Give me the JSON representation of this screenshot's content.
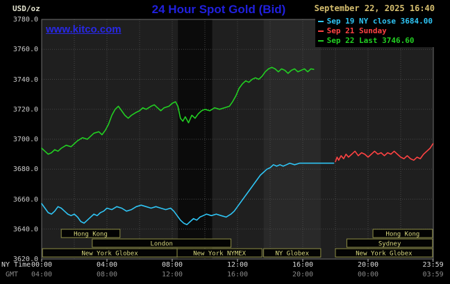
{
  "header": {
    "units_label": "USD/oz",
    "title": "24 Hour Spot Gold (Bid)",
    "datetime": "September 22, 2025 16:40",
    "watermark": "www.kitco.com"
  },
  "legend": [
    {
      "label": "Sep 19 NY close 3684.00",
      "color": "#2fc5f5"
    },
    {
      "label": "Sep 21 Sunday",
      "color": "#ff4343"
    },
    {
      "label": "Sep 22 Last 3746.60",
      "color": "#22cf22"
    }
  ],
  "axes": {
    "ny_time_label": "NY Time",
    "gmt_label": "GMT",
    "y_ticks": [
      {
        "value": 3620,
        "label": "3620.0"
      },
      {
        "value": 3640,
        "label": "3640.0"
      },
      {
        "value": 3660,
        "label": "3660.0"
      },
      {
        "value": 3680,
        "label": "3680.0"
      },
      {
        "value": 3700,
        "label": "3700.0"
      },
      {
        "value": 3720,
        "label": "3720.0"
      },
      {
        "value": 3740,
        "label": "3740.0"
      },
      {
        "value": 3760,
        "label": "3760.0"
      },
      {
        "value": 3780,
        "label": "3780.0"
      }
    ],
    "x_ticks": [
      {
        "t": 0,
        "ny": "00:00",
        "gmt": "04:00"
      },
      {
        "t": 4,
        "ny": "04:00",
        "gmt": "08:00"
      },
      {
        "t": 8,
        "ny": "08:00",
        "gmt": "12:00"
      },
      {
        "t": 12,
        "ny": "12:00",
        "gmt": "16:00"
      },
      {
        "t": 16,
        "ny": "16:00",
        "gmt": "20:00"
      },
      {
        "t": 20,
        "ny": "20:00",
        "gmt": "00:00"
      },
      {
        "t": 23.983,
        "ny": "23:59",
        "gmt": "03:59"
      }
    ],
    "x_grid": [
      2,
      4,
      6,
      8,
      10,
      12,
      14,
      16,
      18,
      20,
      22
    ]
  },
  "sessions": [
    {
      "label": "Hong Kong",
      "row": 0,
      "start": 1.2,
      "end": 4.8
    },
    {
      "label": "Hong Kong",
      "row": 0,
      "start": 20.3,
      "end": 23.95
    },
    {
      "label": "London",
      "row": 1,
      "start": 3.1,
      "end": 11.6
    },
    {
      "label": "Sydney",
      "row": 1,
      "start": 18.7,
      "end": 23.95
    },
    {
      "label": "New York Globex",
      "row": 2,
      "start": 0.05,
      "end": 8.3
    },
    {
      "label": "New York NYMEX",
      "row": 2,
      "start": 8.3,
      "end": 13.5
    },
    {
      "label": "NY Globex",
      "row": 2,
      "start": 13.6,
      "end": 17.1
    },
    {
      "label": "New York Globex",
      "row": 2,
      "start": 18.0,
      "end": 23.95
    }
  ],
  "chart_data": {
    "type": "line",
    "title": "24 Hour Spot Gold (Bid)",
    "ylabel": "USD/oz",
    "x_unit": "hours, NY time",
    "x_range": [
      0,
      24
    ],
    "y_range": [
      3620,
      3780
    ],
    "grid": true,
    "plot_bg": "#1f1f1f",
    "bands": [
      {
        "start": 8.35,
        "end": 10.45,
        "color": "#0b0b0b"
      },
      {
        "start": 13.6,
        "end": 17.1,
        "color": "#292929"
      }
    ],
    "series": [
      {
        "name": "Sep 19 NY close 3684.00",
        "color": "#2fc5f5",
        "points": [
          [
            0,
            3657
          ],
          [
            0.2,
            3654
          ],
          [
            0.4,
            3651
          ],
          [
            0.6,
            3650
          ],
          [
            0.8,
            3652
          ],
          [
            1,
            3655
          ],
          [
            1.2,
            3654
          ],
          [
            1.4,
            3652
          ],
          [
            1.6,
            3650
          ],
          [
            1.8,
            3649
          ],
          [
            2,
            3650
          ],
          [
            2.2,
            3648
          ],
          [
            2.4,
            3645
          ],
          [
            2.6,
            3644
          ],
          [
            2.8,
            3646
          ],
          [
            3,
            3648
          ],
          [
            3.2,
            3650
          ],
          [
            3.4,
            3649
          ],
          [
            3.6,
            3651
          ],
          [
            3.8,
            3652
          ],
          [
            4,
            3654
          ],
          [
            4.3,
            3653
          ],
          [
            4.6,
            3655
          ],
          [
            4.9,
            3654
          ],
          [
            5.2,
            3652
          ],
          [
            5.5,
            3653
          ],
          [
            5.8,
            3655
          ],
          [
            6.1,
            3656
          ],
          [
            6.4,
            3655
          ],
          [
            6.7,
            3654
          ],
          [
            7,
            3655
          ],
          [
            7.3,
            3654
          ],
          [
            7.6,
            3653
          ],
          [
            7.9,
            3654
          ],
          [
            8.1,
            3652
          ],
          [
            8.3,
            3649
          ],
          [
            8.5,
            3646
          ],
          [
            8.7,
            3644
          ],
          [
            8.9,
            3643
          ],
          [
            9.1,
            3645
          ],
          [
            9.3,
            3647
          ],
          [
            9.5,
            3646
          ],
          [
            9.7,
            3648
          ],
          [
            9.9,
            3649
          ],
          [
            10.1,
            3650
          ],
          [
            10.4,
            3649
          ],
          [
            10.7,
            3650
          ],
          [
            11,
            3649
          ],
          [
            11.3,
            3648
          ],
          [
            11.6,
            3650
          ],
          [
            11.8,
            3652
          ],
          [
            12,
            3655
          ],
          [
            12.2,
            3658
          ],
          [
            12.4,
            3661
          ],
          [
            12.6,
            3664
          ],
          [
            12.8,
            3667
          ],
          [
            13,
            3670
          ],
          [
            13.2,
            3673
          ],
          [
            13.4,
            3676
          ],
          [
            13.6,
            3678
          ],
          [
            13.8,
            3680
          ],
          [
            14,
            3681
          ],
          [
            14.2,
            3683
          ],
          [
            14.4,
            3682
          ],
          [
            14.6,
            3683
          ],
          [
            14.8,
            3682
          ],
          [
            15,
            3683
          ],
          [
            15.2,
            3684
          ],
          [
            15.5,
            3683
          ],
          [
            15.8,
            3684
          ],
          [
            16.1,
            3684
          ],
          [
            16.5,
            3684
          ],
          [
            17,
            3684
          ],
          [
            17.5,
            3684
          ],
          [
            17.9,
            3684
          ]
        ]
      },
      {
        "name": "Sep 21 Sunday",
        "color": "#ff4343",
        "points": [
          [
            18,
            3685
          ],
          [
            18.1,
            3688
          ],
          [
            18.2,
            3686
          ],
          [
            18.35,
            3689
          ],
          [
            18.5,
            3687
          ],
          [
            18.65,
            3690
          ],
          [
            18.8,
            3688
          ],
          [
            19,
            3690
          ],
          [
            19.2,
            3692
          ],
          [
            19.4,
            3689
          ],
          [
            19.6,
            3691
          ],
          [
            19.8,
            3690
          ],
          [
            20,
            3688
          ],
          [
            20.2,
            3690
          ],
          [
            20.4,
            3692
          ],
          [
            20.6,
            3690
          ],
          [
            20.8,
            3691
          ],
          [
            21,
            3689
          ],
          [
            21.2,
            3691
          ],
          [
            21.4,
            3690
          ],
          [
            21.6,
            3692
          ],
          [
            21.8,
            3690
          ],
          [
            22,
            3688
          ],
          [
            22.2,
            3687
          ],
          [
            22.4,
            3689
          ],
          [
            22.6,
            3687
          ],
          [
            22.8,
            3686
          ],
          [
            23,
            3688
          ],
          [
            23.2,
            3687
          ],
          [
            23.4,
            3690
          ],
          [
            23.6,
            3692
          ],
          [
            23.8,
            3694
          ],
          [
            23.98,
            3697
          ]
        ]
      },
      {
        "name": "Sep 22 Last 3746.60",
        "color": "#22cf22",
        "points": [
          [
            0,
            3694
          ],
          [
            0.2,
            3692
          ],
          [
            0.4,
            3690
          ],
          [
            0.6,
            3691
          ],
          [
            0.8,
            3693
          ],
          [
            1,
            3692
          ],
          [
            1.2,
            3694
          ],
          [
            1.5,
            3696
          ],
          [
            1.8,
            3695
          ],
          [
            2,
            3697
          ],
          [
            2.2,
            3699
          ],
          [
            2.5,
            3701
          ],
          [
            2.8,
            3700
          ],
          [
            3,
            3702
          ],
          [
            3.2,
            3704
          ],
          [
            3.5,
            3705
          ],
          [
            3.7,
            3703
          ],
          [
            3.9,
            3706
          ],
          [
            4.1,
            3710
          ],
          [
            4.3,
            3716
          ],
          [
            4.5,
            3720
          ],
          [
            4.7,
            3722
          ],
          [
            4.9,
            3719
          ],
          [
            5.1,
            3716
          ],
          [
            5.3,
            3714
          ],
          [
            5.5,
            3716
          ],
          [
            5.8,
            3718
          ],
          [
            6,
            3719
          ],
          [
            6.2,
            3721
          ],
          [
            6.4,
            3720
          ],
          [
            6.7,
            3722
          ],
          [
            6.9,
            3723
          ],
          [
            7.1,
            3721
          ],
          [
            7.3,
            3719
          ],
          [
            7.5,
            3721
          ],
          [
            7.8,
            3722
          ],
          [
            8,
            3724
          ],
          [
            8.2,
            3725
          ],
          [
            8.35,
            3722
          ],
          [
            8.5,
            3714
          ],
          [
            8.65,
            3712
          ],
          [
            8.8,
            3715
          ],
          [
            9,
            3711
          ],
          [
            9.2,
            3716
          ],
          [
            9.4,
            3714
          ],
          [
            9.6,
            3717
          ],
          [
            9.8,
            3719
          ],
          [
            10,
            3720
          ],
          [
            10.3,
            3719
          ],
          [
            10.6,
            3721
          ],
          [
            10.9,
            3720
          ],
          [
            11.2,
            3721
          ],
          [
            11.5,
            3722
          ],
          [
            11.7,
            3725
          ],
          [
            11.9,
            3729
          ],
          [
            12.1,
            3734
          ],
          [
            12.3,
            3737
          ],
          [
            12.5,
            3739
          ],
          [
            12.7,
            3738
          ],
          [
            12.9,
            3740
          ],
          [
            13.1,
            3741
          ],
          [
            13.3,
            3740
          ],
          [
            13.5,
            3742
          ],
          [
            13.7,
            3745
          ],
          [
            13.9,
            3747
          ],
          [
            14.1,
            3748
          ],
          [
            14.3,
            3747
          ],
          [
            14.5,
            3745
          ],
          [
            14.7,
            3747
          ],
          [
            14.9,
            3746
          ],
          [
            15.1,
            3744
          ],
          [
            15.3,
            3746
          ],
          [
            15.5,
            3747
          ],
          [
            15.7,
            3745
          ],
          [
            15.9,
            3746
          ],
          [
            16.1,
            3747
          ],
          [
            16.3,
            3745
          ],
          [
            16.5,
            3747
          ],
          [
            16.67,
            3746.6
          ]
        ]
      }
    ]
  }
}
